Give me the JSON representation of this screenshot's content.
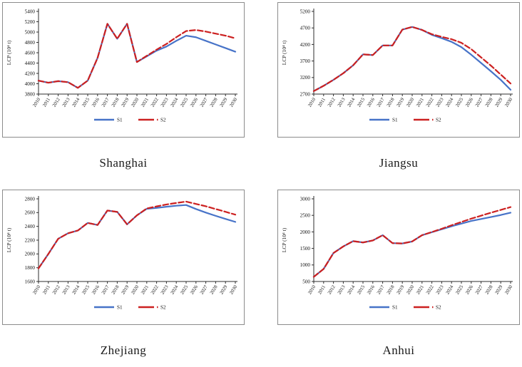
{
  "colors": {
    "s1": "#4773C8",
    "s2": "#CC2020",
    "axis": "#2E2E2E",
    "box_border": "#8C8C8C",
    "text": "#111111"
  },
  "chart_data": [
    {
      "type": "line",
      "region": "Shanghai",
      "ylabel": "LCP (10⁴ t)",
      "x": [
        "2010",
        "2011",
        "2012",
        "2013",
        "2014",
        "2015",
        "2016",
        "2017",
        "2018",
        "2019",
        "2020",
        "2021",
        "2022",
        "2023",
        "2024",
        "2025",
        "2026",
        "2027",
        "2028",
        "2029",
        "2030"
      ],
      "ylim": [
        3800,
        5400
      ],
      "yticks": [
        3800,
        4000,
        4200,
        4400,
        4600,
        4800,
        5000,
        5200,
        5400
      ],
      "legend_position": "bottom",
      "grid": false,
      "series": [
        {
          "name": "S1",
          "style": "solid",
          "values": [
            4060,
            4020,
            4050,
            4030,
            3920,
            4060,
            4500,
            5160,
            4870,
            5160,
            4420,
            4530,
            4640,
            4720,
            4830,
            4930,
            4900,
            4830,
            4760,
            4690,
            4620
          ]
        },
        {
          "name": "S2",
          "style": "dashed",
          "values": [
            4060,
            4020,
            4050,
            4030,
            3920,
            4060,
            4500,
            5160,
            4870,
            5160,
            4420,
            4540,
            4660,
            4770,
            4900,
            5020,
            5040,
            5010,
            4970,
            4930,
            4880
          ]
        }
      ]
    },
    {
      "type": "line",
      "region": "Jiangsu",
      "ylabel": "LCP (10⁴ t)",
      "x": [
        "2010",
        "2011",
        "2012",
        "2013",
        "2014",
        "2015",
        "2016",
        "2017",
        "2018",
        "2019",
        "2020",
        "2021",
        "2022",
        "2023",
        "2024",
        "2025",
        "2026",
        "2027",
        "2028",
        "2029",
        "2030"
      ],
      "ylim": [
        2700,
        5200
      ],
      "yticks": [
        2700,
        3200,
        3700,
        4200,
        4700,
        5200
      ],
      "legend_position": "bottom",
      "grid": false,
      "series": [
        {
          "name": "S1",
          "style": "solid",
          "values": [
            2790,
            2950,
            3130,
            3330,
            3570,
            3900,
            3880,
            4170,
            4170,
            4650,
            4730,
            4640,
            4490,
            4390,
            4280,
            4120,
            3890,
            3640,
            3390,
            3130,
            2830
          ]
        },
        {
          "name": "S2",
          "style": "dashed",
          "values": [
            2790,
            2950,
            3130,
            3330,
            3570,
            3900,
            3880,
            4170,
            4170,
            4650,
            4730,
            4640,
            4510,
            4430,
            4360,
            4250,
            4060,
            3810,
            3560,
            3290,
            3020
          ]
        }
      ]
    },
    {
      "type": "line",
      "region": "Zhejiang",
      "ylabel": "LCP (10⁴ t)",
      "x": [
        "2010",
        "2011",
        "2012",
        "2013",
        "2014",
        "2015",
        "2016",
        "2017",
        "2018",
        "2019",
        "2020",
        "2021",
        "2022",
        "2023",
        "2024",
        "2025",
        "2026",
        "2027",
        "2028",
        "2029",
        "2030"
      ],
      "ylim": [
        1600,
        2800
      ],
      "yticks": [
        1600,
        1800,
        2000,
        2200,
        2400,
        2600,
        2800
      ],
      "legend_position": "bottom",
      "grid": false,
      "series": [
        {
          "name": "S1",
          "style": "solid",
          "values": [
            1790,
            2000,
            2220,
            2300,
            2340,
            2450,
            2420,
            2630,
            2610,
            2430,
            2560,
            2655,
            2668,
            2685,
            2700,
            2710,
            2652,
            2600,
            2553,
            2508,
            2465
          ]
        },
        {
          "name": "S2",
          "style": "dashed",
          "values": [
            1790,
            2000,
            2220,
            2300,
            2340,
            2450,
            2420,
            2630,
            2610,
            2430,
            2560,
            2660,
            2690,
            2718,
            2740,
            2760,
            2726,
            2692,
            2652,
            2612,
            2570
          ]
        }
      ]
    },
    {
      "type": "line",
      "region": "Anhui",
      "ylabel": "LCP (10⁴ t)",
      "x": [
        "2010",
        "2011",
        "2012",
        "2013",
        "2014",
        "2015",
        "2016",
        "2017",
        "2018",
        "2019",
        "2020",
        "2021",
        "2022",
        "2023",
        "2024",
        "2025",
        "2026",
        "2027",
        "2028",
        "2029",
        "2030"
      ],
      "ylim": [
        500,
        3000
      ],
      "yticks": [
        500,
        1000,
        1500,
        2000,
        2500,
        3000
      ],
      "legend_position": "bottom",
      "grid": false,
      "series": [
        {
          "name": "S1",
          "style": "solid",
          "values": [
            640,
            880,
            1360,
            1560,
            1720,
            1680,
            1740,
            1900,
            1660,
            1650,
            1710,
            1900,
            1990,
            2080,
            2170,
            2250,
            2330,
            2390,
            2450,
            2510,
            2580
          ]
        },
        {
          "name": "S2",
          "style": "dashed",
          "values": [
            640,
            880,
            1360,
            1560,
            1720,
            1680,
            1740,
            1900,
            1660,
            1650,
            1710,
            1900,
            1995,
            2095,
            2200,
            2300,
            2400,
            2490,
            2580,
            2665,
            2750
          ]
        }
      ]
    }
  ]
}
